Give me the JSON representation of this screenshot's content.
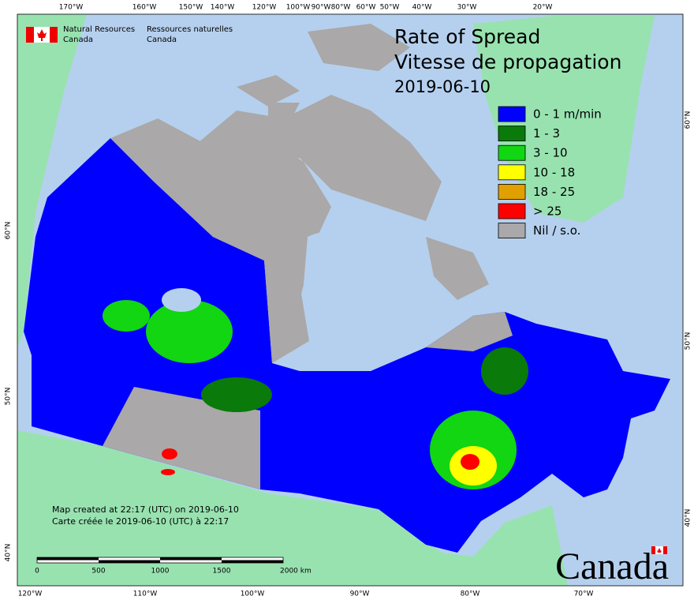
{
  "header": {
    "agency_en": "Natural Resources",
    "agency_en_2": "Canada",
    "agency_fr": "Ressources naturelles",
    "agency_fr_2": "Canada"
  },
  "title": {
    "line1": "Rate of Spread",
    "line2": "Vitesse de propagation",
    "date": "2019-06-10"
  },
  "legend": [
    {
      "label": "0 - 1 m/min",
      "color": "#0000ff"
    },
    {
      "label": "1 - 3",
      "color": "#0a7a0a"
    },
    {
      "label": "3 - 10",
      "color": "#11d611"
    },
    {
      "label": "10 - 18",
      "color": "#ffff00"
    },
    {
      "label": "18 - 25",
      "color": "#e0a000"
    },
    {
      "label": "> 25",
      "color": "#ff0000"
    },
    {
      "label": "Nil / s.o.",
      "color": "#aaa8a8"
    }
  ],
  "graticule": {
    "top": [
      "170°W",
      "160°W",
      "150°W",
      "140°W",
      "120°W",
      "100°W",
      "90°W",
      "80°W",
      "60°W",
      "50°W",
      "40°W",
      "30°W",
      "20°W"
    ],
    "bottom": [
      "120°W",
      "110°W",
      "100°W",
      "90°W",
      "80°W",
      "70°W"
    ],
    "left": [
      "60°N",
      "50°N",
      "40°N"
    ],
    "right": [
      "60°N",
      "50°N",
      "40°N"
    ]
  },
  "credits": [
    "Map created at 22:17 (UTC) on 2019-06-10",
    "Carte créée le 2019-06-10 (UTC) à 22:17"
  ],
  "scale_bar": {
    "labels": [
      "0",
      "500",
      "1000",
      "1500",
      "2000 km"
    ]
  },
  "wordmark": "Canada"
}
